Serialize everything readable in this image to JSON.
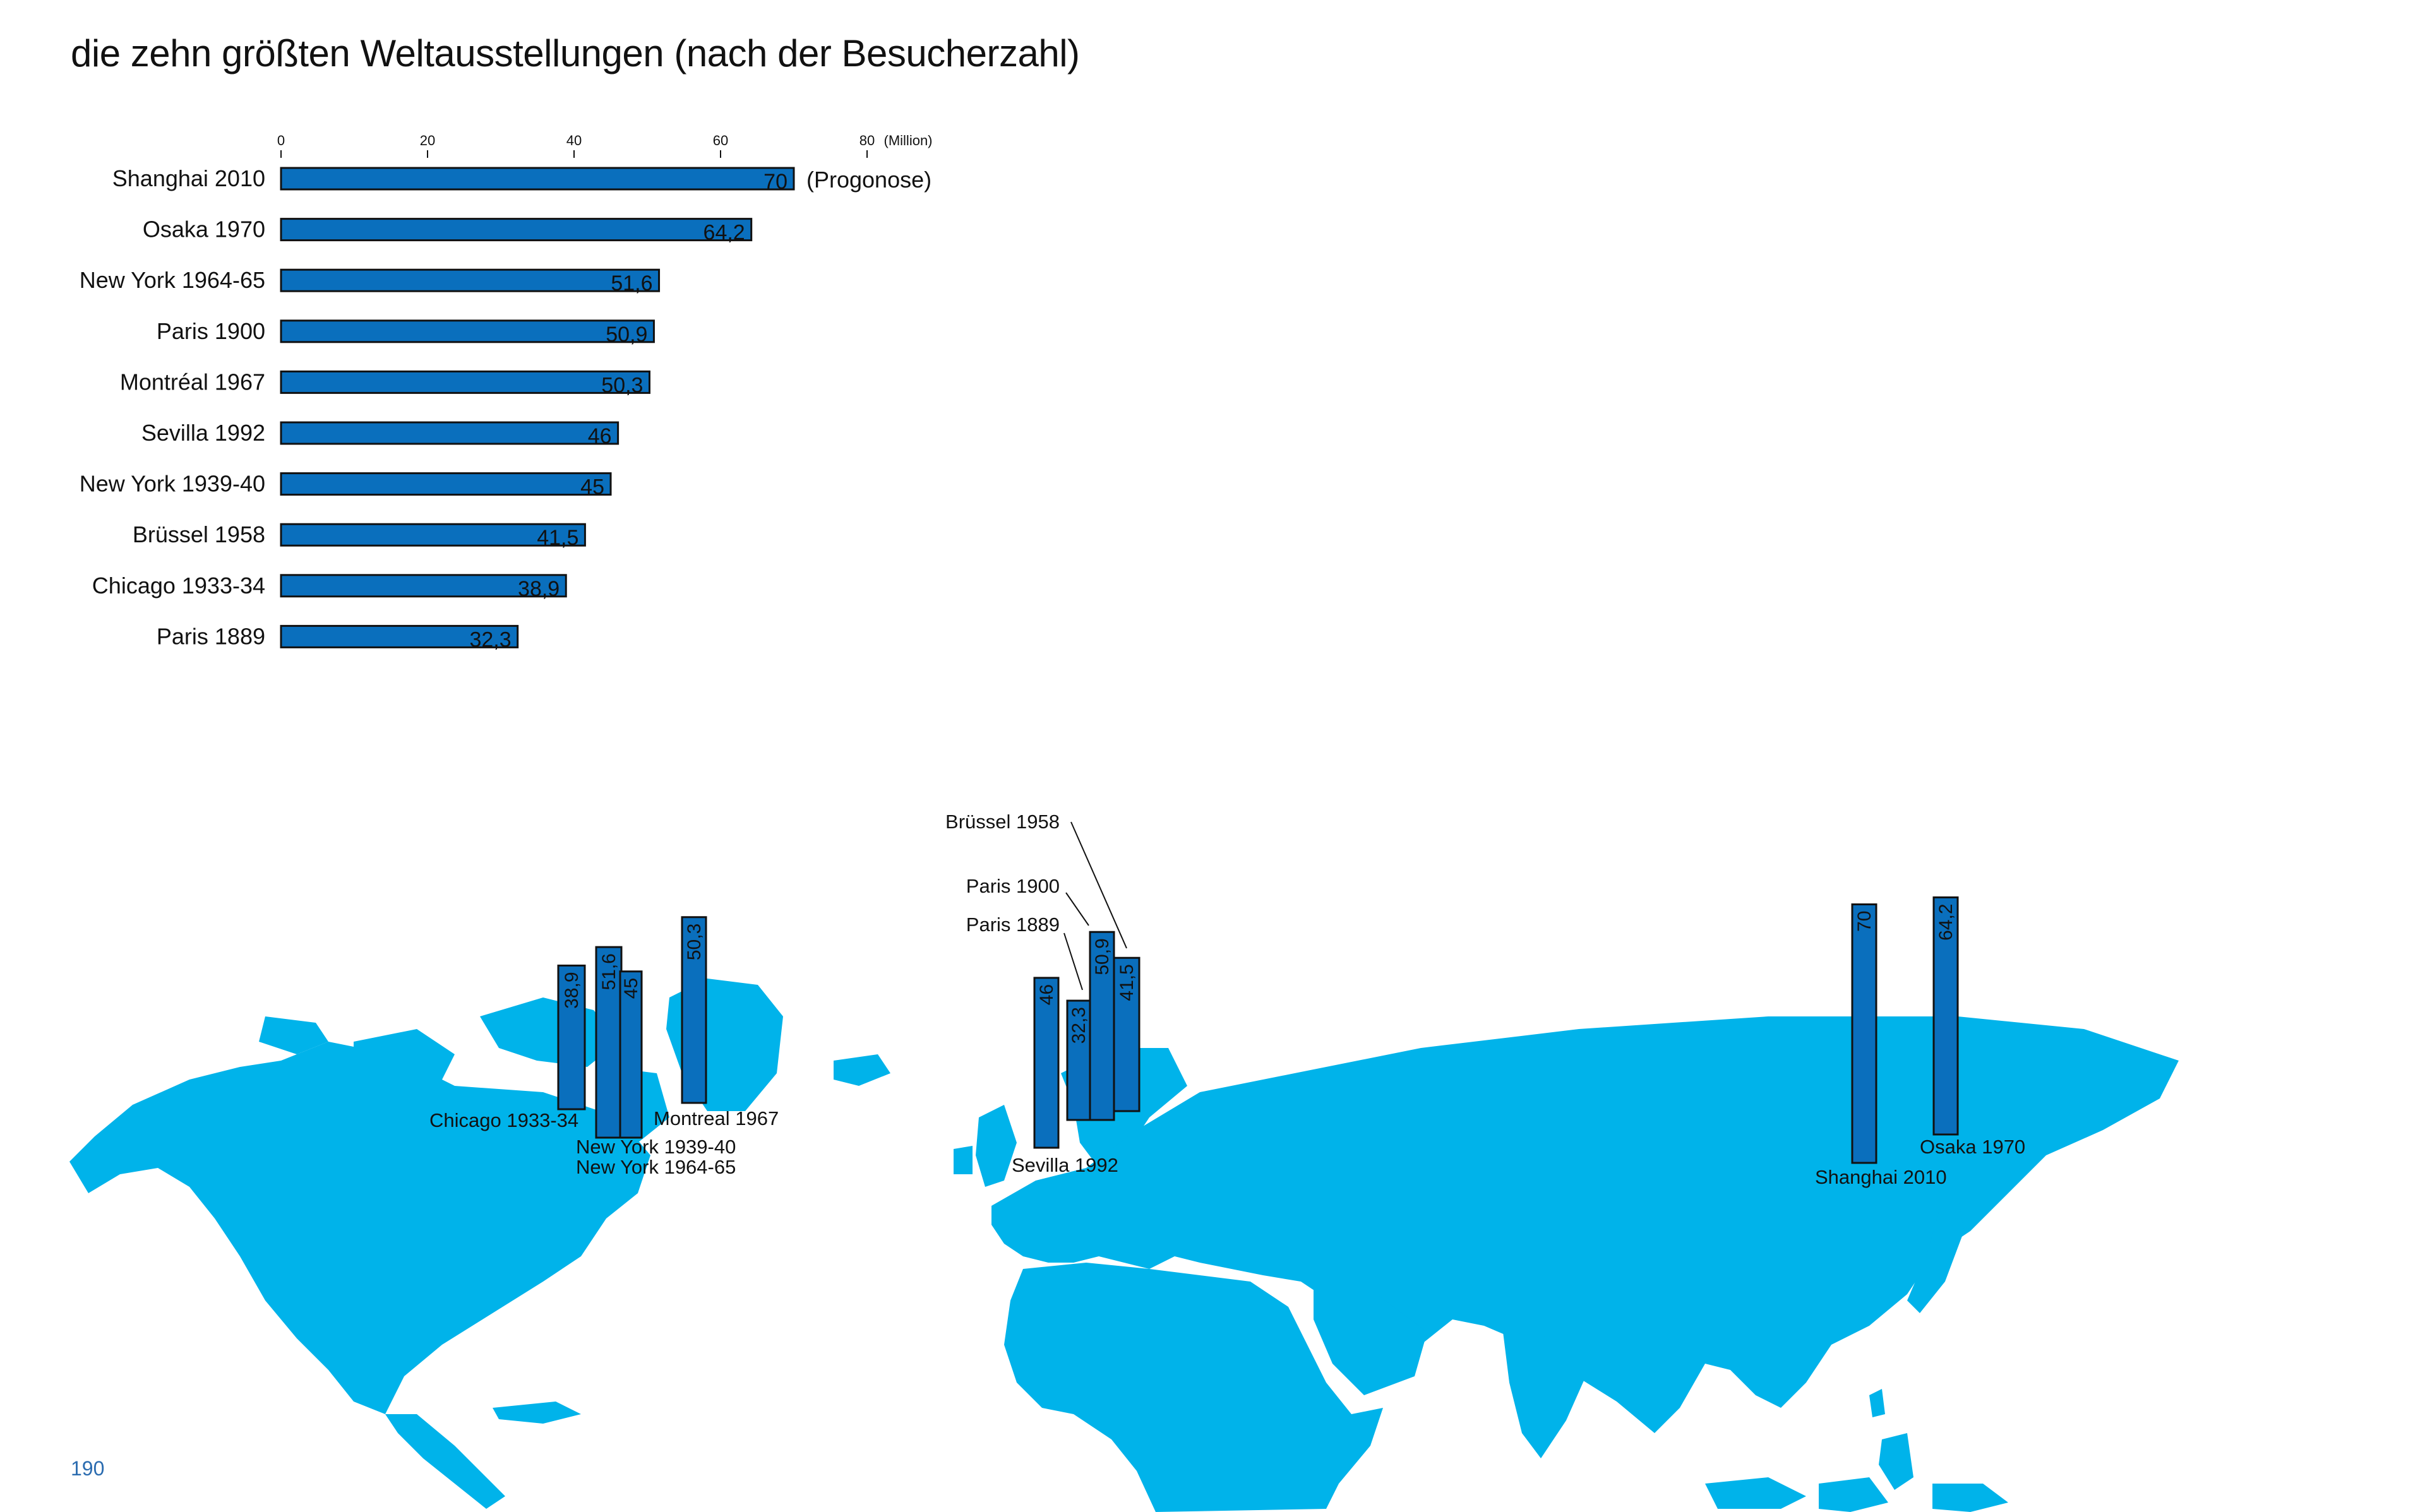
{
  "page": {
    "title": "die zehn größten Weltausstellungen (nach der Besucherzahl)",
    "number": "190"
  },
  "colors": {
    "bar": "#0a6fbd",
    "land": "#00b3ea",
    "text": "#111111",
    "page_number": "#2b6cb0"
  },
  "chart_data": [
    {
      "type": "bar",
      "orientation": "horizontal",
      "title": "die zehn größten Weltausstellungen (nach der Besucherzahl)",
      "unit_label": "(Million)",
      "xlim": [
        0,
        80
      ],
      "ticks": [
        0,
        20,
        40,
        60,
        80
      ],
      "tick_labels": [
        "0",
        "20",
        "40",
        "60",
        "80"
      ],
      "categories": [
        "Shanghai 2010",
        "Osaka 1970",
        "New York 1964-65",
        "Paris 1900",
        "Montréal 1967",
        "Sevilla 1992",
        "New York 1939-40",
        "Brüssel 1958",
        "Chicago 1933-34",
        "Paris 1889"
      ],
      "values": [
        70,
        64.2,
        51.6,
        50.9,
        50.3,
        46,
        45,
        41.5,
        38.9,
        32.3
      ],
      "value_labels": [
        "70",
        "64,2",
        "51,6",
        "50,9",
        "50,3",
        "46",
        "45",
        "41,5",
        "38,9",
        "32,3"
      ],
      "annotations": [
        {
          "category": "Shanghai 2010",
          "text": "(Progonose)"
        }
      ],
      "grid": false
    },
    {
      "type": "bar",
      "subtype": "map-columns",
      "background": "world map",
      "items": [
        {
          "label": "Chicago 1933-34",
          "value": 38.9,
          "value_label": "38,9"
        },
        {
          "label": "New York 1964-65",
          "value": 51.6,
          "value_label": "51,6"
        },
        {
          "label": "New York 1939-40",
          "value": 45,
          "value_label": "45"
        },
        {
          "label": "Montreal 1967",
          "value": 50.3,
          "value_label": "50,3"
        },
        {
          "label": "Sevilla 1992",
          "value": 46,
          "value_label": "46"
        },
        {
          "label": "Paris 1889",
          "value": 32.3,
          "value_label": "32,3"
        },
        {
          "label": "Paris 1900",
          "value": 50.9,
          "value_label": "50,9"
        },
        {
          "label": "Brüssel 1958",
          "value": 41.5,
          "value_label": "41,5"
        },
        {
          "label": "Shanghai 2010",
          "value": 70,
          "value_label": "70"
        },
        {
          "label": "Osaka 1970",
          "value": 64.2,
          "value_label": "64,2"
        }
      ]
    }
  ]
}
